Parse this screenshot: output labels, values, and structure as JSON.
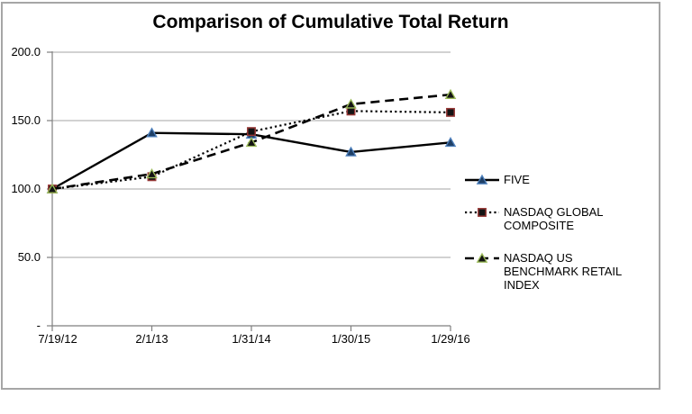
{
  "chart_data": {
    "type": "line",
    "title": "Comparison of Cumulative Total Return",
    "categories": [
      "7/19/12",
      "2/1/13",
      "1/31/14",
      "1/30/15",
      "1/29/16"
    ],
    "series": [
      {
        "name": "FIVE",
        "values": [
          100,
          141,
          140,
          127,
          134
        ],
        "line_style": "solid",
        "line_color": "#000000",
        "marker": "triangle",
        "marker_fill": "#1e3f66",
        "marker_stroke": "#4f81bd"
      },
      {
        "name": "NASDAQ GLOBAL COMPOSITE",
        "values": [
          100,
          109,
          142,
          157,
          156
        ],
        "line_style": "dotted",
        "line_color": "#000000",
        "marker": "square",
        "marker_fill": "#141414",
        "marker_stroke": "#953735"
      },
      {
        "name": "NASDAQ US BENCHMARK RETAIL INDEX",
        "values": [
          100,
          111,
          134,
          162,
          169
        ],
        "line_style": "dashed",
        "line_color": "#000000",
        "marker": "triangle",
        "marker_fill": "#141414",
        "marker_stroke": "#9bbb59"
      }
    ],
    "y_axis": {
      "tick_labels": [
        "200.0",
        "150.0",
        "100.0",
        "50.0",
        "-"
      ],
      "tick_values": [
        200,
        150,
        100,
        50,
        0
      ],
      "range": [
        0,
        200
      ]
    },
    "grid": "horizontal-major",
    "legend_position": "right"
  },
  "style": {
    "axis_color": "#7f7f7f",
    "gridline_color": "#a6a6a6",
    "frame_border_color": "#a6a6a6",
    "text_color": "#000000",
    "background": "#ffffff"
  }
}
